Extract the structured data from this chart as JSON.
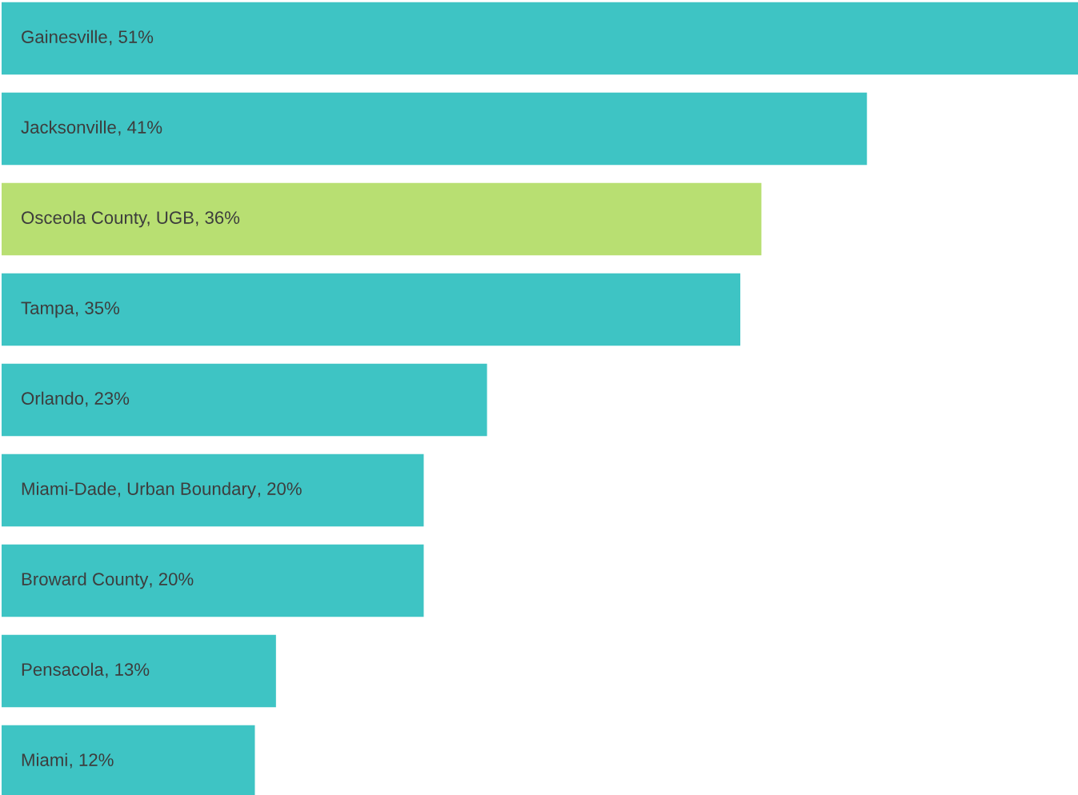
{
  "chart_data": {
    "type": "bar",
    "orientation": "horizontal",
    "categories": [
      "Gainesville",
      "Jacksonville",
      "Osceola County, UGB",
      "Tampa",
      "Orlando",
      "Miami-Dade, Urban Boundary",
      "Broward County",
      "Pensacola",
      "Miami"
    ],
    "values": [
      51,
      41,
      36,
      35,
      23,
      20,
      20,
      13,
      12
    ],
    "value_labels": [
      ", 51%",
      ", 41%",
      ", 36%",
      ", 35%",
      ", 23%",
      ", 20%",
      ", 20%",
      ", 13%",
      ", 12%"
    ],
    "colors": [
      "#3ec4c4",
      "#3ec4c4",
      "#b8df72",
      "#3ec4c4",
      "#3ec4c4",
      "#3ec4c4",
      "#3ec4c4",
      "#3ec4c4",
      "#3ec4c4"
    ]
  }
}
